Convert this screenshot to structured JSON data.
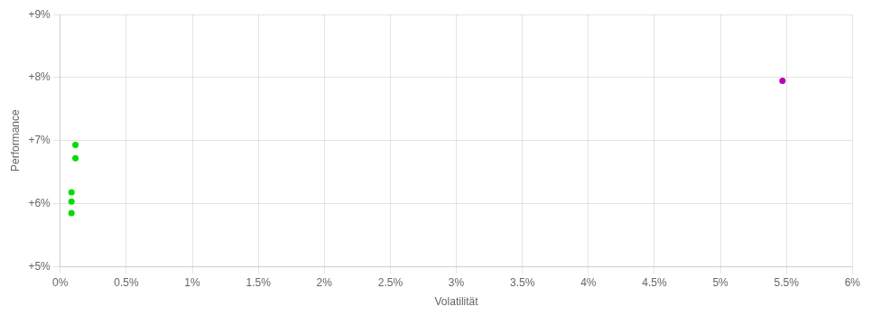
{
  "chart_data": {
    "type": "scatter",
    "xlabel": "Volatilität",
    "ylabel": "Performance",
    "xlim": [
      0,
      0.06
    ],
    "ylim": [
      0.05,
      0.09
    ],
    "xticks": [
      {
        "value": 0,
        "label": "0%"
      },
      {
        "value": 0.005,
        "label": "0.5%"
      },
      {
        "value": 0.01,
        "label": "1%"
      },
      {
        "value": 0.015,
        "label": "1.5%"
      },
      {
        "value": 0.02,
        "label": "2%"
      },
      {
        "value": 0.025,
        "label": "2.5%"
      },
      {
        "value": 0.03,
        "label": "3%"
      },
      {
        "value": 0.035,
        "label": "3.5%"
      },
      {
        "value": 0.04,
        "label": "4%"
      },
      {
        "value": 0.045,
        "label": "4.5%"
      },
      {
        "value": 0.05,
        "label": "5%"
      },
      {
        "value": 0.055,
        "label": "5.5%"
      },
      {
        "value": 0.06,
        "label": "6%"
      }
    ],
    "yticks": [
      {
        "value": 0.05,
        "label": "+5%"
      },
      {
        "value": 0.06,
        "label": "+6%"
      },
      {
        "value": 0.07,
        "label": "+7%"
      },
      {
        "value": 0.08,
        "label": "+8%"
      },
      {
        "value": 0.09,
        "label": "+9%"
      }
    ],
    "grid": true,
    "series": [
      {
        "color": "#00dd00",
        "x": [
          0.00115,
          0.00115,
          0.00085,
          0.00085,
          0.00085
        ],
        "values": [
          0.0693,
          0.0672,
          0.0618,
          0.0603,
          0.0585
        ]
      },
      {
        "color": "#bb00bb",
        "x": [
          0.0547
        ],
        "values": [
          0.0795
        ]
      }
    ]
  }
}
